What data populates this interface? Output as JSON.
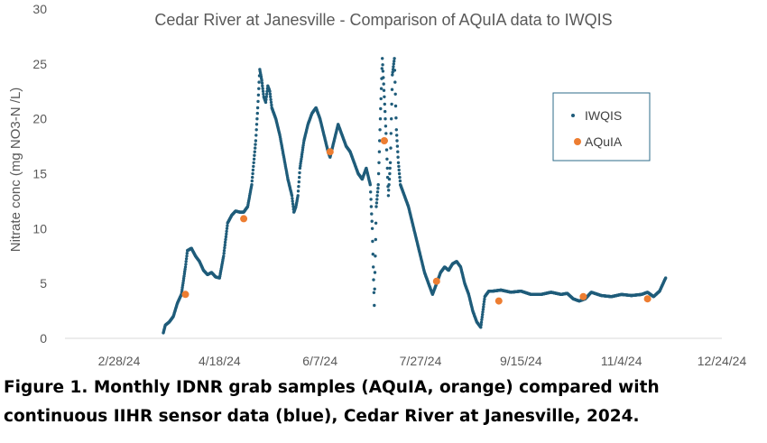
{
  "colors": {
    "iwqis": "#1f5c7a",
    "aquia": "#ed7d31",
    "text": "#595959",
    "axis": "#d9d9d9",
    "legend_border": "#2e6b8a"
  },
  "chart_data": {
    "type": "scatter",
    "title": "Cedar River at Janesville - Comparison of AQuIA data to IWQIS",
    "xlabel": "",
    "ylabel": "Nitrate conc (mg NO3-N /L)",
    "xlim": [
      "2024-02-28",
      "2024-12-24"
    ],
    "ylim": [
      0,
      30
    ],
    "y_ticks": [
      0,
      5,
      10,
      15,
      20,
      25,
      30
    ],
    "x_ticks": [
      {
        "date": "2024-02-28",
        "label": "2/28/24"
      },
      {
        "date": "2024-04-18",
        "label": "4/18/24"
      },
      {
        "date": "2024-06-07",
        "label": "6/7/24"
      },
      {
        "date": "2024-07-27",
        "label": "7/27/24"
      },
      {
        "date": "2024-09-15",
        "label": "9/15/24"
      },
      {
        "date": "2024-11-04",
        "label": "11/4/24"
      },
      {
        "date": "2024-12-24",
        "label": "12/24/24"
      }
    ],
    "grid": false,
    "legend_position": "right",
    "series": [
      {
        "name": "IWQIS",
        "marker": "small-dot",
        "points": [
          [
            "2024-03-21",
            0.5
          ],
          [
            "2024-03-22",
            1.2
          ],
          [
            "2024-03-24",
            1.5
          ],
          [
            "2024-03-26",
            2.0
          ],
          [
            "2024-03-28",
            3.2
          ],
          [
            "2024-03-30",
            4.0
          ],
          [
            "2024-04-01",
            6.5
          ],
          [
            "2024-04-02",
            8.0
          ],
          [
            "2024-04-04",
            8.2
          ],
          [
            "2024-04-06",
            7.5
          ],
          [
            "2024-04-08",
            7.0
          ],
          [
            "2024-04-10",
            6.2
          ],
          [
            "2024-04-12",
            5.8
          ],
          [
            "2024-04-14",
            6.0
          ],
          [
            "2024-04-16",
            5.6
          ],
          [
            "2024-04-18",
            5.5
          ],
          [
            "2024-04-20",
            7.5
          ],
          [
            "2024-04-22",
            10.5
          ],
          [
            "2024-04-24",
            11.2
          ],
          [
            "2024-04-26",
            11.6
          ],
          [
            "2024-04-28",
            11.5
          ],
          [
            "2024-04-30",
            11.5
          ],
          [
            "2024-05-02",
            12.0
          ],
          [
            "2024-05-04",
            14.0
          ],
          [
            "2024-05-06",
            18.0
          ],
          [
            "2024-05-07",
            21.0
          ],
          [
            "2024-05-08",
            24.5
          ],
          [
            "2024-05-09",
            23.5
          ],
          [
            "2024-05-10",
            22.0
          ],
          [
            "2024-05-11",
            21.5
          ],
          [
            "2024-05-12",
            23.0
          ],
          [
            "2024-05-13",
            22.5
          ],
          [
            "2024-05-14",
            21.0
          ],
          [
            "2024-05-16",
            20.0
          ],
          [
            "2024-05-18",
            18.5
          ],
          [
            "2024-05-20",
            16.5
          ],
          [
            "2024-05-22",
            14.5
          ],
          [
            "2024-05-24",
            13.0
          ],
          [
            "2024-05-25",
            11.5
          ],
          [
            "2024-05-26",
            12.0
          ],
          [
            "2024-05-27",
            13.0
          ],
          [
            "2024-05-28",
            15.5
          ],
          [
            "2024-05-30",
            18.0
          ],
          [
            "2024-06-01",
            19.5
          ],
          [
            "2024-06-03",
            20.5
          ],
          [
            "2024-06-05",
            21.0
          ],
          [
            "2024-06-07",
            20.0
          ],
          [
            "2024-06-09",
            18.5
          ],
          [
            "2024-06-11",
            17.0
          ],
          [
            "2024-06-12",
            16.5
          ],
          [
            "2024-06-14",
            18.0
          ],
          [
            "2024-06-16",
            19.5
          ],
          [
            "2024-06-18",
            18.5
          ],
          [
            "2024-06-20",
            17.5
          ],
          [
            "2024-06-22",
            17.0
          ],
          [
            "2024-06-24",
            16.0
          ],
          [
            "2024-06-26",
            15.0
          ],
          [
            "2024-06-28",
            14.5
          ],
          [
            "2024-06-30",
            15.5
          ],
          [
            "2024-07-02",
            14.0
          ],
          [
            "2024-07-03",
            10.0
          ],
          [
            "2024-07-04",
            3.0
          ],
          [
            "2024-07-05",
            12.0
          ],
          [
            "2024-07-06",
            14.0
          ],
          [
            "2024-07-07",
            20.0
          ],
          [
            "2024-07-08",
            25.5
          ],
          [
            "2024-07-09",
            22.0
          ],
          [
            "2024-07-10",
            18.0
          ],
          [
            "2024-07-11",
            13.0
          ],
          [
            "2024-07-12",
            16.0
          ],
          [
            "2024-07-13",
            24.0
          ],
          [
            "2024-07-14",
            25.5
          ],
          [
            "2024-07-15",
            19.0
          ],
          [
            "2024-07-16",
            16.0
          ],
          [
            "2024-07-17",
            14.0
          ],
          [
            "2024-07-19",
            13.0
          ],
          [
            "2024-07-21",
            12.0
          ],
          [
            "2024-07-23",
            10.5
          ],
          [
            "2024-07-25",
            9.0
          ],
          [
            "2024-07-27",
            7.5
          ],
          [
            "2024-07-29",
            6.0
          ],
          [
            "2024-07-31",
            5.0
          ],
          [
            "2024-08-02",
            4.0
          ],
          [
            "2024-08-04",
            5.0
          ],
          [
            "2024-08-06",
            6.0
          ],
          [
            "2024-08-08",
            6.5
          ],
          [
            "2024-08-10",
            6.2
          ],
          [
            "2024-08-12",
            6.8
          ],
          [
            "2024-08-14",
            7.0
          ],
          [
            "2024-08-16",
            6.5
          ],
          [
            "2024-08-18",
            5.0
          ],
          [
            "2024-08-20",
            4.0
          ],
          [
            "2024-08-22",
            2.5
          ],
          [
            "2024-08-24",
            1.5
          ],
          [
            "2024-08-26",
            1.0
          ],
          [
            "2024-08-28",
            3.8
          ],
          [
            "2024-08-30",
            4.3
          ],
          [
            "2024-09-01",
            4.3
          ],
          [
            "2024-09-05",
            4.4
          ],
          [
            "2024-09-10",
            4.2
          ],
          [
            "2024-09-15",
            4.3
          ],
          [
            "2024-09-20",
            4.0
          ],
          [
            "2024-09-25",
            4.0
          ],
          [
            "2024-09-30",
            4.2
          ],
          [
            "2024-10-05",
            4.0
          ],
          [
            "2024-10-08",
            4.1
          ],
          [
            "2024-10-11",
            3.6
          ],
          [
            "2024-10-14",
            3.4
          ],
          [
            "2024-10-17",
            3.6
          ],
          [
            "2024-10-20",
            4.2
          ],
          [
            "2024-10-25",
            3.9
          ],
          [
            "2024-10-30",
            3.8
          ],
          [
            "2024-11-04",
            4.0
          ],
          [
            "2024-11-09",
            3.9
          ],
          [
            "2024-11-14",
            4.0
          ],
          [
            "2024-11-17",
            4.2
          ],
          [
            "2024-11-20",
            3.8
          ],
          [
            "2024-11-23",
            4.3
          ],
          [
            "2024-11-26",
            5.5
          ]
        ]
      },
      {
        "name": "AQuIA",
        "marker": "dot",
        "points": [
          [
            "2024-04-01",
            4.0
          ],
          [
            "2024-04-30",
            10.9
          ],
          [
            "2024-06-12",
            17.0
          ],
          [
            "2024-07-09",
            18.0
          ],
          [
            "2024-08-04",
            5.2
          ],
          [
            "2024-09-04",
            3.4
          ],
          [
            "2024-10-16",
            3.8
          ],
          [
            "2024-11-17",
            3.6
          ]
        ]
      }
    ]
  },
  "caption": {
    "line1": "Figure 1. Monthly IDNR grab samples (AQuIA, orange) compared with",
    "line2": "continuous IIHR sensor data (blue), Cedar River at Janesville, 2024."
  }
}
